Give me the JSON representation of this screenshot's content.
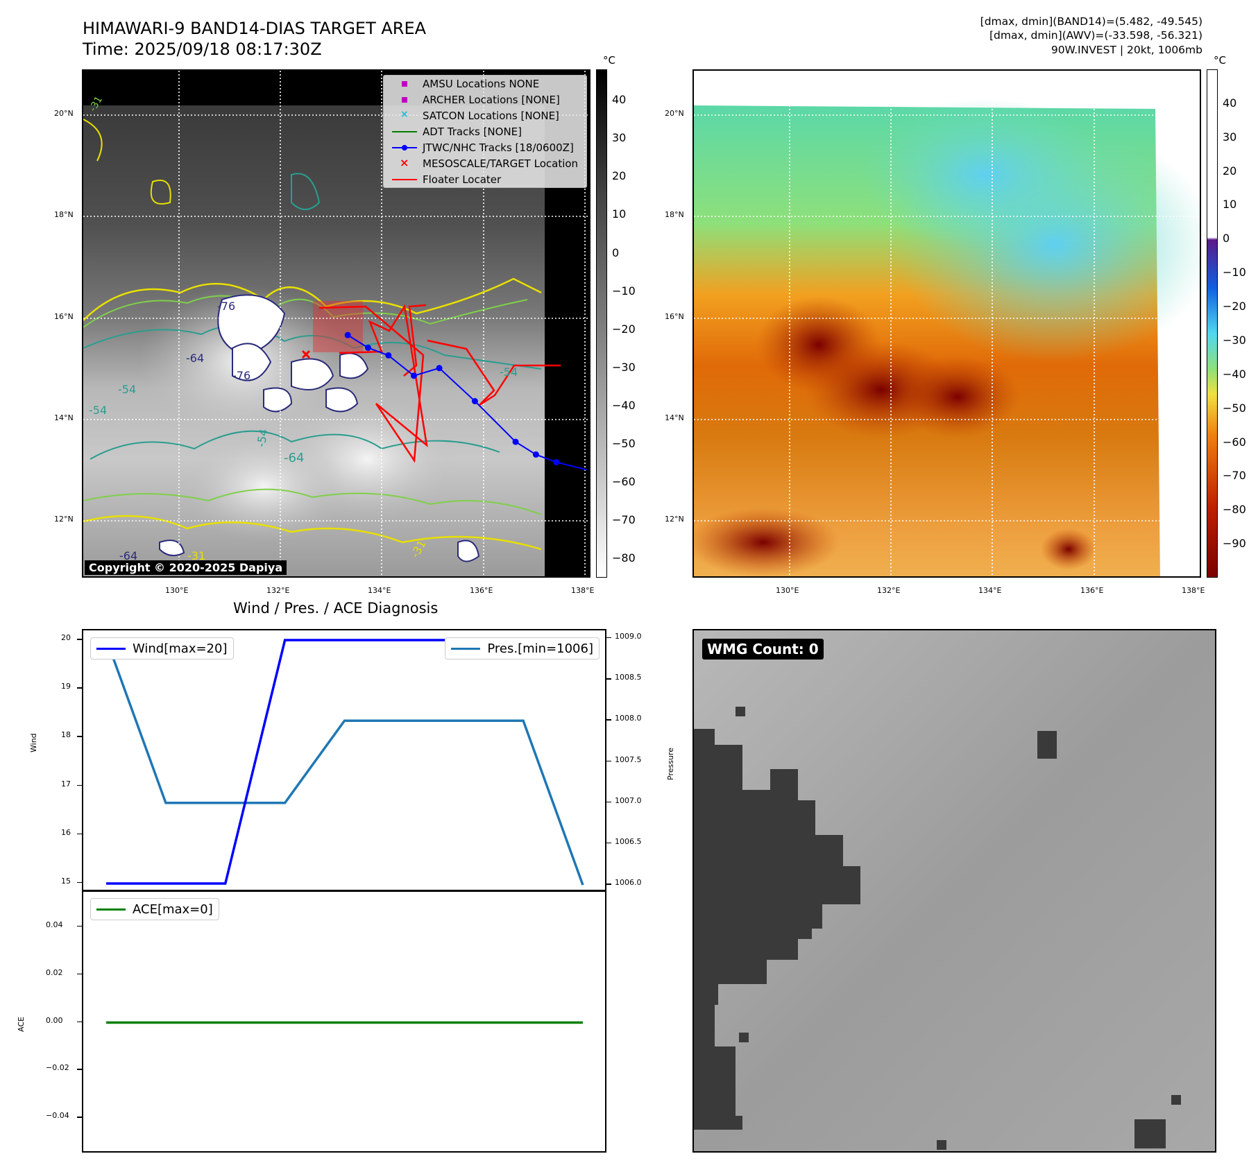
{
  "header": {
    "title_line1": "HIMAWARI-9 BAND14-DIAS TARGET AREA",
    "title_line2": "Time: 2025/09/18 08:17:30Z",
    "info_line1": "[dmax, dmin](BAND14)=(5.482, -49.545)",
    "info_line2": "[dmax, dmin](AWV)=(-33.598, -56.321)",
    "info_line3": "90W.INVEST | 20kt, 1006mb"
  },
  "colors": {
    "wind": "#0000ff",
    "pressure": "#1f77b4",
    "ace": "#008000",
    "track": "#0000ff",
    "floater": "#ff0000",
    "amsu": "#c000c0",
    "satcon": "#17becf",
    "adt": "#008000"
  },
  "map_axes": {
    "lat_labels": [
      "20°N",
      "18°N",
      "16°N",
      "14°N",
      "12°N"
    ],
    "lon_labels": [
      "130°E",
      "132°E",
      "134°E",
      "136°E",
      "138°E"
    ],
    "unit": "°C"
  },
  "left_map": {
    "legend": [
      {
        "label": "AMSU Locations NONE",
        "icon": "square-marker",
        "color": "#c000c0"
      },
      {
        "label": "ARCHER Locations [NONE]",
        "icon": "square-marker",
        "color": "#c000c0"
      },
      {
        "label": "SATCON Locations [NONE]",
        "icon": "x-marker",
        "color": "#17becf"
      },
      {
        "label": "ADT Tracks [NONE]",
        "icon": "line",
        "color": "#008000"
      },
      {
        "label": "JTWC/NHC Tracks [18/0600Z]",
        "icon": "line-dot",
        "color": "#0000ff"
      },
      {
        "label": "MESOSCALE/TARGET Location",
        "icon": "x-marker",
        "color": "#ff0000"
      },
      {
        "label": "Floater Locater",
        "icon": "line",
        "color": "#ff0000"
      }
    ],
    "contour_labels": [
      "-76",
      "-64",
      "-76",
      "-54",
      "-54",
      "-64",
      "-54",
      "-54",
      "-31",
      "-64",
      "-31",
      "-31"
    ],
    "copyright": "Copyright © 2020-2025 Dapiya",
    "colorbar_ticks": [
      "40",
      "30",
      "20",
      "10",
      "0",
      "−10",
      "−20",
      "−30",
      "−40",
      "−50",
      "−60",
      "−70",
      "−80"
    ],
    "colorbar_range": [
      -85,
      48
    ]
  },
  "right_map": {
    "colorbar_ticks": [
      "40",
      "30",
      "20",
      "10",
      "0",
      "−10",
      "−20",
      "−30",
      "−40",
      "−50",
      "−60",
      "−70",
      "−80",
      "−90"
    ],
    "colorbar_range": [
      -100,
      50
    ]
  },
  "wind_panel": {
    "title": "Wind / Pres. / ACE Diagnosis",
    "ylabel_left": "Wind",
    "ylabel_right": "Pressure",
    "left_ticks": [
      "20",
      "19",
      "18",
      "17",
      "16",
      "15"
    ],
    "right_ticks": [
      "1009.0",
      "1008.5",
      "1008.0",
      "1007.5",
      "1007.0",
      "1006.5",
      "1006.0"
    ],
    "legend_wind": "Wind[max=20]",
    "legend_pres": "Pres.[min=1006]"
  },
  "ace_panel": {
    "ylabel": "ACE",
    "ticks": [
      "0.04",
      "0.02",
      "0.00",
      "−0.02",
      "−0.04"
    ],
    "legend": "ACE[max=0]"
  },
  "wmg_panel": {
    "label": "WMG Count: 0"
  },
  "chart_data": [
    {
      "type": "line",
      "title": "Wind / Pres. / ACE Diagnosis",
      "x": [
        0,
        1,
        2,
        3,
        4,
        5,
        6,
        7,
        8
      ],
      "series": [
        {
          "name": "Wind[max=20]",
          "axis": "left",
          "values": [
            15,
            15,
            15,
            20,
            20,
            20,
            20,
            20,
            20
          ],
          "ylim": [
            14.8,
            20.2
          ]
        },
        {
          "name": "Pres.[min=1006]",
          "axis": "right",
          "values": [
            1009,
            1007,
            1007,
            1007,
            1008,
            1008,
            1008,
            1008,
            1006
          ],
          "ylim": [
            1005.9,
            1009.1
          ]
        }
      ],
      "ylabel": "Wind",
      "y2label": "Pressure",
      "grid": false,
      "legend": "top-left / top-right"
    },
    {
      "type": "line",
      "x": [
        0,
        1,
        2,
        3,
        4,
        5,
        6,
        7,
        8
      ],
      "series": [
        {
          "name": "ACE[max=0]",
          "values": [
            0,
            0,
            0,
            0,
            0,
            0,
            0,
            0,
            0
          ]
        }
      ],
      "ylabel": "ACE",
      "ylim": [
        -0.055,
        0.055
      ],
      "grid": false,
      "legend": "top-left"
    },
    {
      "type": "line",
      "title": "JTWC/NHC Tracks [18/0600Z]",
      "series": [
        {
          "name": "JTWC/NHC Tracks [18/0600Z]",
          "x": [
            138.0,
            137.4,
            137.0,
            136.6,
            135.8,
            135.1,
            134.6,
            134.1,
            133.7,
            133.3
          ],
          "y": [
            13.05,
            13.2,
            13.35,
            13.6,
            14.4,
            15.05,
            14.9,
            15.3,
            15.45,
            15.7
          ]
        }
      ],
      "xlim": [
        128.1,
        138.1
      ],
      "ylim": [
        10.9,
        20.9
      ],
      "grid": true,
      "legend": "top-right"
    }
  ]
}
